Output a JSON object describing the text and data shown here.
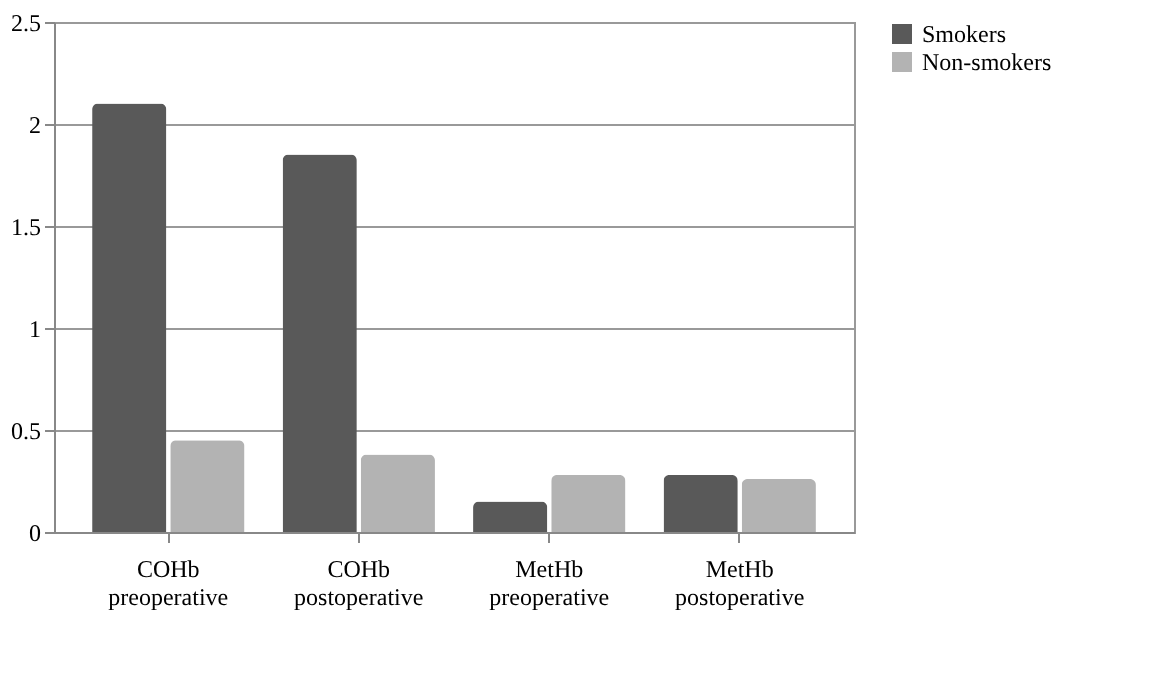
{
  "chart_data": {
    "type": "bar",
    "categories": [
      "COHb\npreoperative",
      "COHb\npostoperative",
      "MetHb\npreoperative",
      "MetHb\npostoperative"
    ],
    "series": [
      {
        "name": "Smokers",
        "color": "#595959",
        "values": [
          2.1,
          1.85,
          0.15,
          0.28
        ]
      },
      {
        "name": "Non-smokers",
        "color": "#b3b3b3",
        "values": [
          0.45,
          0.38,
          0.28,
          0.26
        ]
      }
    ],
    "ylim": [
      0,
      2.5
    ],
    "yticks": [
      0,
      0.5,
      1,
      1.5,
      2,
      2.5
    ],
    "grid": "y",
    "legend": "right"
  }
}
